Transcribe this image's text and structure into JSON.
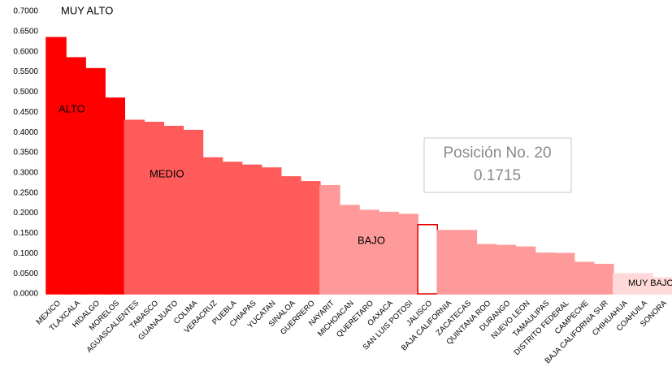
{
  "chart_data": {
    "type": "bar",
    "categories": [
      "MEXICO",
      "TLAXCALA",
      "HIDALGO",
      "MORELOS",
      "AGUASCALIENTES",
      "TABASCO",
      "GUANAJUATO",
      "COLIMA",
      "VERACRUZ",
      "PUEBLA",
      "CHIAPAS",
      "YUCATAN",
      "SINALOA",
      "GUERRERO",
      "NAYARIT",
      "MICHOACAN",
      "QUERETARO",
      "OAXACA",
      "SAN LUIS POTOSI",
      "JALISCO",
      "BAJA CALIFORNIA",
      "ZACATECAS",
      "QUINTANA ROO",
      "DURANGO",
      "NUEVO LEON",
      "TAMAULIPAS",
      "DISTRITO FEDERAL",
      "CAMPECHE",
      "BAJA CALIFORNIA SUR",
      "CHIHUAHUA",
      "COAHUILA",
      "SONORA"
    ],
    "values": [
      0.635,
      0.585,
      0.558,
      0.485,
      0.43,
      0.425,
      0.415,
      0.405,
      0.337,
      0.326,
      0.319,
      0.312,
      0.29,
      0.278,
      0.268,
      0.219,
      0.207,
      0.202,
      0.197,
      0.1715,
      0.157,
      0.157,
      0.122,
      0.12,
      0.116,
      0.101,
      0.1,
      0.078,
      0.073,
      0.05,
      0.05,
      0.04
    ],
    "colors": [
      "#ff0000",
      "#ff0000",
      "#ff0000",
      "#ff0000",
      "#ff5b5b",
      "#ff5b5b",
      "#ff5b5b",
      "#ff5b5b",
      "#ff5b5b",
      "#ff5b5b",
      "#ff5b5b",
      "#ff5b5b",
      "#ff5b5b",
      "#ff5b5b",
      "#ff9a9a",
      "#ff9a9a",
      "#ff9a9a",
      "#ff9a9a",
      "#ff9a9a",
      "#ffffff",
      "#ff9a9a",
      "#ff9a9a",
      "#ff9a9a",
      "#ff9a9a",
      "#ff9a9a",
      "#ff9a9a",
      "#ff9a9a",
      "#ff9a9a",
      "#ff9a9a",
      "#ffd9d9",
      "#ffd9d9",
      "#ffd9d9"
    ],
    "edgecolors": [
      "#ff0000",
      "#ff0000",
      "#ff0000",
      "#ff0000",
      "#ff5b5b",
      "#ff5b5b",
      "#ff5b5b",
      "#ff5b5b",
      "#ff5b5b",
      "#ff5b5b",
      "#ff5b5b",
      "#ff5b5b",
      "#ff5b5b",
      "#ff5b5b",
      "#ff9a9a",
      "#ff9a9a",
      "#ff9a9a",
      "#ff9a9a",
      "#ff9a9a",
      "#e00000",
      "#ff9a9a",
      "#ff9a9a",
      "#ff9a9a",
      "#ff9a9a",
      "#ff9a9a",
      "#ff9a9a",
      "#ff9a9a",
      "#ff9a9a",
      "#ff9a9a",
      "#ffd9d9",
      "#ffd9d9",
      "#ffd9d9"
    ],
    "ylim": [
      0,
      0.7
    ],
    "yticks": [
      {
        "value": 0,
        "label": "0.0000"
      },
      {
        "value": 0.05,
        "label": "0.0500"
      },
      {
        "value": 0.1,
        "label": "0.1000"
      },
      {
        "value": 0.15,
        "label": "0.1500"
      },
      {
        "value": 0.2,
        "label": "0.2000"
      },
      {
        "value": 0.25,
        "label": "0.2500"
      },
      {
        "value": 0.3,
        "label": "0.3000"
      },
      {
        "value": 0.35,
        "label": "0.3500"
      },
      {
        "value": 0.4,
        "label": "0.4000"
      },
      {
        "value": 0.45,
        "label": "0.4500"
      },
      {
        "value": 0.5,
        "label": "0.5000"
      },
      {
        "value": 0.55,
        "label": "0.5500"
      },
      {
        "value": 0.6,
        "label": "0.6000"
      },
      {
        "value": 0.65,
        "label": "0.6500"
      },
      {
        "value": 0.7,
        "label": "0.7000"
      }
    ],
    "grid": false,
    "annotations": [
      "MUY ALTO",
      "ALTO",
      "MEDIO",
      "BAJO",
      "MUY BAJO"
    ],
    "callout": [
      "Posición No. 20",
      "0.1715"
    ]
  }
}
